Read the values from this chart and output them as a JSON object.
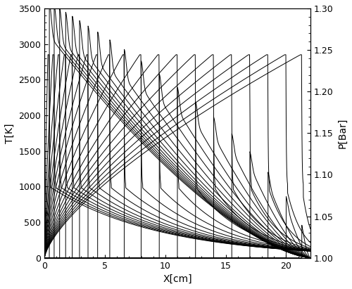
{
  "x_max": 22.0,
  "T_ylim": [
    0,
    3500
  ],
  "P_ylim": [
    1.0,
    1.3
  ],
  "flame_positions": [
    0.4,
    0.8,
    1.25,
    1.75,
    2.3,
    2.9,
    3.6,
    4.4,
    5.4,
    6.6,
    8.0,
    9.5,
    11.0,
    12.5,
    14.0,
    15.5,
    17.0,
    18.5,
    20.0,
    21.3
  ],
  "T_peak": 2850,
  "T_unburned": 1000,
  "T_wall": 0,
  "P0": 1.0,
  "P_peak_max": 1.27,
  "xlabel": "X[cm]",
  "ylabel_left": "T[K]",
  "ylabel_right": "P[Bar]",
  "color": "#000000",
  "lw": 0.7,
  "tick_fontsize": 9,
  "label_fontsize": 10,
  "figsize": [
    5.0,
    4.11
  ],
  "dpi": 100
}
